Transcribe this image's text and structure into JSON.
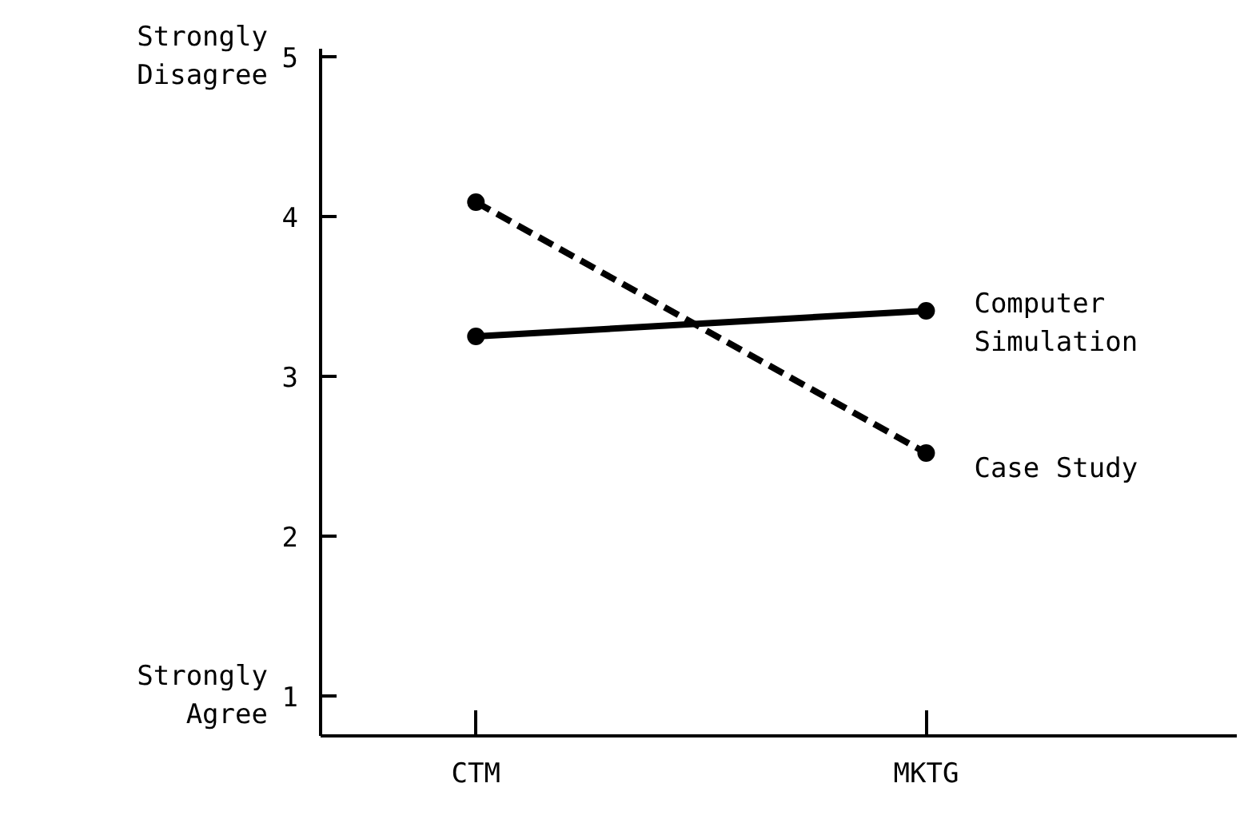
{
  "chart_data": {
    "type": "line",
    "categories": [
      "CTM",
      "MKTG"
    ],
    "series": [
      {
        "name": "Computer Simulation",
        "color": "#000000",
        "values": [
          3.25,
          3.41
        ],
        "line_style": "solid"
      },
      {
        "name": "Case Study",
        "color": "#000000",
        "values": [
          4.09,
          2.52
        ],
        "line_style": "dashed"
      }
    ],
    "ylim": [
      0.75,
      5.05
    ],
    "yticks": [
      1,
      2,
      3,
      4,
      5
    ],
    "marker": "circle",
    "legend": false,
    "grid": false,
    "annotations": [
      "Strongly\nDisagree",
      "Strongly\nAgree"
    ]
  }
}
